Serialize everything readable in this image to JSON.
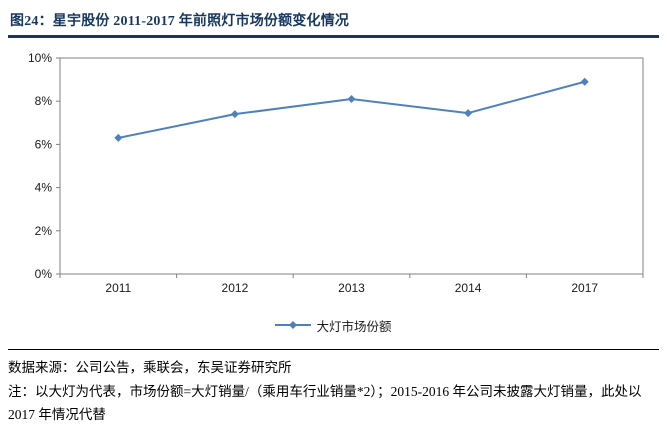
{
  "figure": {
    "title": "图24：星宇股份 2011-2017 年前照灯市场份额变化情况",
    "accent_color": "#17375E",
    "line_color": "#4F81BD",
    "axis_color": "#808080"
  },
  "chart_data": {
    "type": "line",
    "categories": [
      "2011",
      "2012",
      "2013",
      "2014",
      "2017"
    ],
    "series": [
      {
        "name": "大灯市场份额",
        "values": [
          6.3,
          7.4,
          8.1,
          7.45,
          8.9
        ]
      }
    ],
    "title": "",
    "xlabel": "",
    "ylabel": "",
    "ylim": [
      0,
      10
    ],
    "ytick_step": 2,
    "ytick_labels": [
      "0%",
      "2%",
      "4%",
      "6%",
      "8%",
      "10%"
    ],
    "grid": false,
    "legend_position": "bottom",
    "marker": "diamond"
  },
  "footer": {
    "source": "数据来源：公司公告，乘联会，东吴证券研究所",
    "note": "注：以大灯为代表，市场份额=大灯销量/（乘用车行业销量*2）；2015-2016 年公司未披露大灯销量，此处以 2017 年情况代替"
  }
}
